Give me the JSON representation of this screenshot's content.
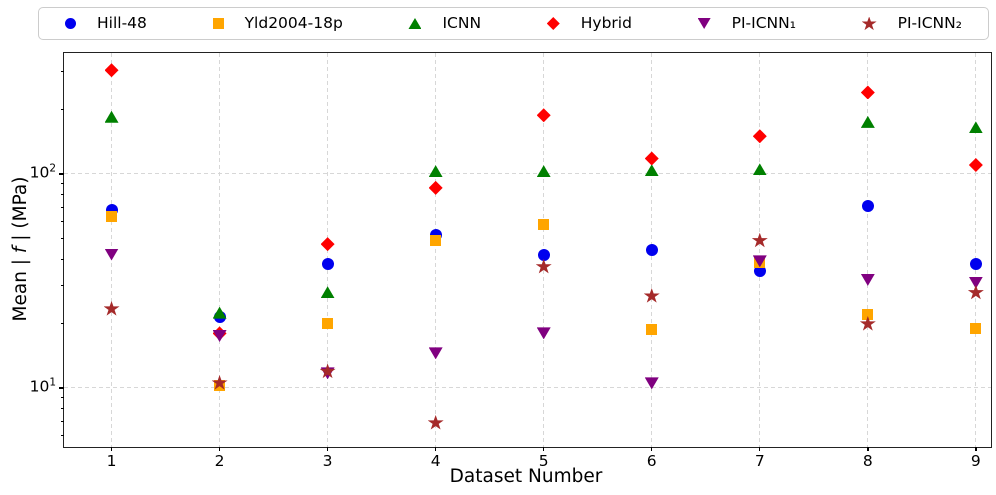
{
  "figure": {
    "background": "#ffffff",
    "text_color": "#000000",
    "grid_color": "#d7d7d7",
    "spine_color": "#222222",
    "legend_border_color": "#cccccc"
  },
  "chart_data": {
    "type": "scatter",
    "title": "",
    "xlabel": "Dataset Number",
    "ylabel": "Mean | f | (MPa)",
    "ylabel_parts": {
      "prefix": "Mean | ",
      "italic": "f",
      "suffix": " | (MPa)"
    },
    "y_scale": "log",
    "grid": "dashed",
    "legend_position": "top",
    "xlim": [
      0.56,
      9.14
    ],
    "ylim": [
      5.3,
      367
    ],
    "x_ticks": [
      1,
      2,
      3,
      4,
      5,
      6,
      7,
      8,
      9
    ],
    "y_major_ticks": [
      {
        "value": 10,
        "base": "10",
        "exponent": "1"
      },
      {
        "value": 100,
        "base": "10",
        "exponent": "2"
      }
    ],
    "y_minor_ticks": [
      6,
      7,
      8,
      9,
      20,
      30,
      40,
      50,
      60,
      70,
      80,
      90,
      200,
      300
    ],
    "categories": [
      1,
      2,
      3,
      4,
      5,
      6,
      7,
      8,
      9
    ],
    "series": [
      {
        "name": "Hill-48",
        "marker": "circle",
        "color": "#0000EE",
        "values": [
          68,
          21.5,
          38,
          52,
          42,
          44,
          35,
          71,
          38
        ]
      },
      {
        "name": "Yld2004-18p",
        "marker": "square",
        "color": "#FFA500",
        "values": [
          63,
          10.3,
          20,
          49,
          58,
          18.7,
          38.5,
          22,
          19
        ]
      },
      {
        "name": "ICNN",
        "marker": "triangle-up",
        "color": "#008000",
        "values": [
          185,
          22.5,
          28,
          103,
          103,
          104,
          105,
          175,
          165
        ]
      },
      {
        "name": "Hybrid",
        "marker": "diamond",
        "color": "#FF0000",
        "values": [
          305,
          18,
          47,
          86,
          188,
          118,
          150,
          240,
          110
        ]
      },
      {
        "name": "PI-ICNN₁",
        "marker": "triangle-down",
        "color": "#800080",
        "values": [
          42,
          17.5,
          11.7,
          14.5,
          18,
          10.5,
          39,
          32,
          31
        ]
      },
      {
        "name": "PI-ICNN₂",
        "marker": "star",
        "color": "#A52A2A",
        "values": [
          23.5,
          10.6,
          12,
          6.9,
          37,
          27,
          49,
          20,
          28
        ]
      }
    ]
  }
}
